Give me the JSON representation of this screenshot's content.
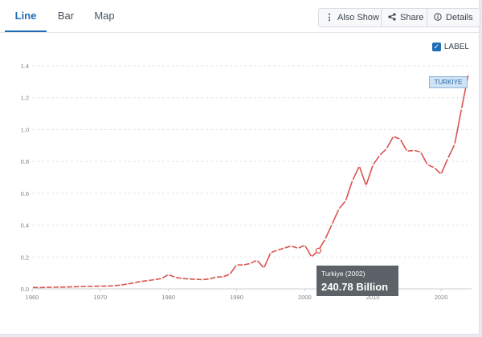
{
  "tabs": [
    {
      "label": "Line"
    },
    {
      "label": "Bar"
    },
    {
      "label": "Map"
    }
  ],
  "toolbar": {
    "also_show_label": "Also Show",
    "share_label": "Share",
    "details_label": "Details"
  },
  "label_toggle": {
    "label": "LABEL",
    "checked": true
  },
  "series_tag": "TURKIYE",
  "tooltip": {
    "title": "Turkiye (2002)",
    "value": "240.78 Billion"
  },
  "colors": {
    "accent": "#1f6eb5",
    "series": "#d9534f"
  },
  "chart_data": {
    "type": "line",
    "title": "",
    "xlabel": "",
    "ylabel": "",
    "xlim": [
      1960,
      2024
    ],
    "ylim": [
      0,
      1.4
    ],
    "x_ticks": [
      1960,
      1970,
      1980,
      1990,
      2000,
      2010,
      2020
    ],
    "y_ticks": [
      "0.0",
      "0.2",
      "0.4",
      "0.6",
      "0.8",
      "1.0",
      "1.2",
      "1.4"
    ],
    "grid": true,
    "highlight": {
      "x": 2002,
      "y": 0.24
    },
    "series": [
      {
        "name": "TURKIYE",
        "x": [
          1960,
          1961,
          1962,
          1963,
          1964,
          1965,
          1966,
          1967,
          1968,
          1969,
          1970,
          1971,
          1972,
          1973,
          1974,
          1975,
          1976,
          1977,
          1978,
          1979,
          1980,
          1981,
          1982,
          1983,
          1984,
          1985,
          1986,
          1987,
          1988,
          1989,
          1990,
          1991,
          1992,
          1993,
          1994,
          1995,
          1996,
          1997,
          1998,
          1999,
          2000,
          2001,
          2002,
          2003,
          2004,
          2005,
          2006,
          2007,
          2008,
          2009,
          2010,
          2011,
          2012,
          2013,
          2014,
          2015,
          2016,
          2017,
          2018,
          2019,
          2020,
          2021,
          2022,
          2023,
          2024
        ],
        "values": [
          0.009,
          0.008,
          0.009,
          0.01,
          0.011,
          0.011,
          0.013,
          0.014,
          0.015,
          0.016,
          0.017,
          0.017,
          0.019,
          0.024,
          0.03,
          0.039,
          0.047,
          0.052,
          0.058,
          0.065,
          0.09,
          0.072,
          0.065,
          0.062,
          0.06,
          0.058,
          0.062,
          0.074,
          0.076,
          0.091,
          0.15,
          0.15,
          0.159,
          0.18,
          0.131,
          0.227,
          0.243,
          0.256,
          0.269,
          0.255,
          0.274,
          0.201,
          0.241,
          0.312,
          0.405,
          0.501,
          0.553,
          0.681,
          0.77,
          0.649,
          0.777,
          0.838,
          0.88,
          0.957,
          0.939,
          0.864,
          0.869,
          0.859,
          0.779,
          0.761,
          0.72,
          0.819,
          0.907,
          1.13,
          1.344
        ]
      }
    ]
  }
}
